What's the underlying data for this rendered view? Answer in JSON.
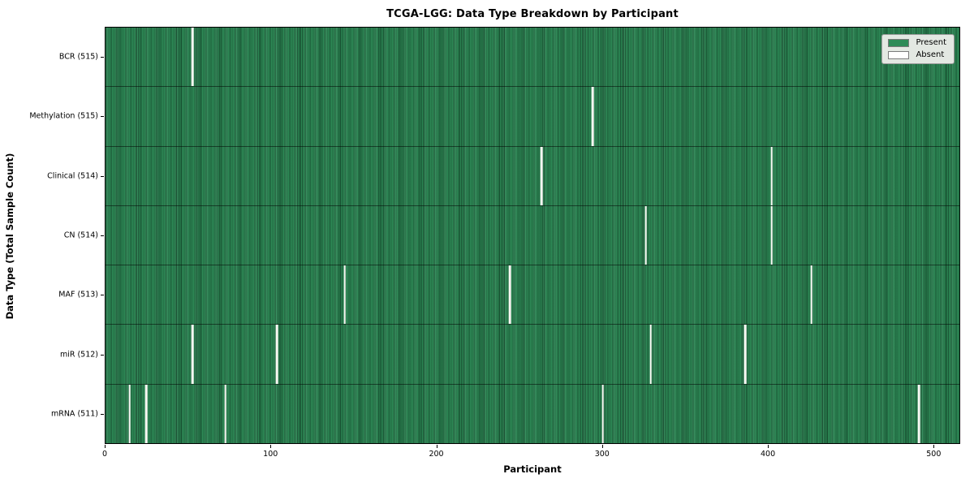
{
  "title": "TCGA-LGG: Data Type Breakdown by Participant",
  "colors": {
    "present": "#2e8b57",
    "absent": "#f7f7f2",
    "legend_bg": "#e3e8e2",
    "plot_border": "#000000"
  },
  "legend": {
    "present_label": "Present",
    "absent_label": "Absent",
    "position": "upper right"
  },
  "chart_data": {
    "type": "heatmap",
    "title": "TCGA-LGG: Data Type Breakdown by Participant",
    "xlabel": "Participant",
    "ylabel": "Data Type (Total Sample Count)",
    "x_ticks": [
      0,
      100,
      200,
      300,
      400,
      500
    ],
    "x_range": [
      0,
      516
    ],
    "n_participants": 516,
    "grid": false,
    "legend_entries": [
      "Present",
      "Absent"
    ],
    "legend_position": "upper right",
    "rows": [
      {
        "label": "BCR (515)",
        "data_type": "BCR",
        "present_count": 515,
        "absent_participants": [
          52
        ]
      },
      {
        "label": "Methylation (515)",
        "data_type": "Methylation",
        "present_count": 515,
        "absent_participants": [
          294
        ]
      },
      {
        "label": "Clinical (514)",
        "data_type": "Clinical",
        "present_count": 514,
        "absent_participants": [
          263,
          402
        ]
      },
      {
        "label": "CN (514)",
        "data_type": "CN",
        "present_count": 514,
        "absent_participants": [
          326,
          402
        ]
      },
      {
        "label": "MAF (513)",
        "data_type": "MAF",
        "present_count": 513,
        "absent_participants": [
          144,
          244,
          426
        ]
      },
      {
        "label": "miR (512)",
        "data_type": "miR",
        "present_count": 512,
        "absent_participants": [
          52,
          103,
          329,
          386
        ]
      },
      {
        "label": "mRNA (511)",
        "data_type": "mRNA",
        "present_count": 511,
        "absent_participants": [
          14,
          24,
          72,
          300,
          491
        ]
      }
    ]
  }
}
